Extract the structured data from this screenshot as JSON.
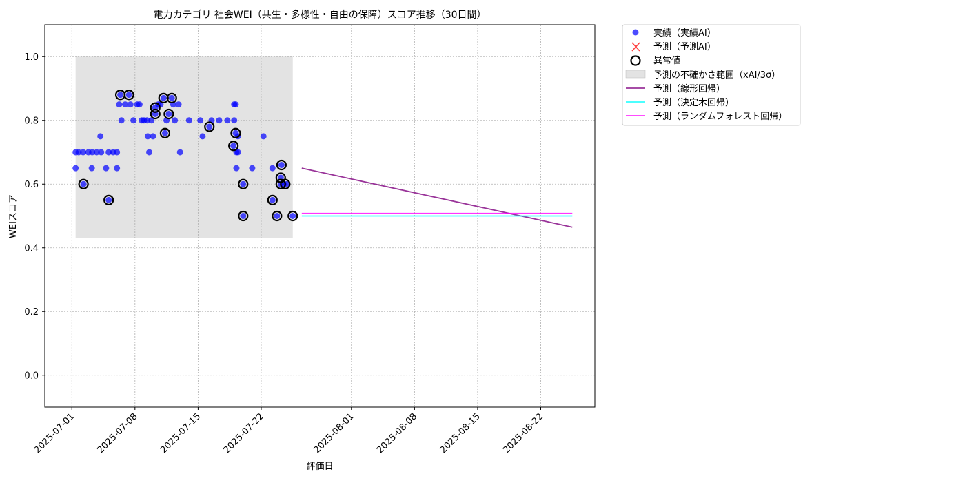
{
  "chart_data": {
    "type": "scatter",
    "title": "電力カテゴリ 社会WEI（共生・多様性・自由の保障）スコア推移（30日間）",
    "xlabel": "評価日",
    "ylabel": "WEIスコア",
    "xlim": [
      "2025-06-28",
      "2025-08-28"
    ],
    "ylim": [
      -0.1,
      1.1
    ],
    "x_ticks": [
      "2025-07-01",
      "2025-07-08",
      "2025-07-15",
      "2025-07-22",
      "2025-08-01",
      "2025-08-08",
      "2025-08-15",
      "2025-08-22"
    ],
    "y_ticks": [
      "0.0",
      "0.2",
      "0.4",
      "0.6",
      "0.8",
      "1.0"
    ],
    "grid": true,
    "legend_position": "outside-top-right",
    "colors": {
      "actual": "#0000ff",
      "predicted_ai": "#ff0000",
      "anomaly": "#000000",
      "uncertainty_band": "#cccccc",
      "linear": "#800080",
      "decision_tree": "#00ffff",
      "random_forest": "#ff00ff"
    },
    "legend": {
      "actual": "実績（実績AI）",
      "predicted_ai": "予測（予測AI）",
      "anomaly": "異常値",
      "uncertainty": "予測の不確かさ範囲（xAI/3σ）",
      "linear": "予測（線形回帰）",
      "decision_tree": "予測（決定木回帰）",
      "random_forest": "予測（ランダムフォレスト回帰）"
    },
    "uncertainty_band": {
      "x_start": "2025-07-01 10:00",
      "x_end": "2025-07-25 12:00",
      "y_low": 0.43,
      "y_high": 1.0
    },
    "actual_points": [
      {
        "x": "2025-07-01 10:00",
        "y": 0.65
      },
      {
        "x": "2025-07-01 10:00",
        "y": 0.7
      },
      {
        "x": "2025-07-01 18:00",
        "y": 0.7
      },
      {
        "x": "2025-07-02 06:00",
        "y": 0.7
      },
      {
        "x": "2025-07-02 07:00",
        "y": 0.6
      },
      {
        "x": "2025-07-02 20:00",
        "y": 0.7
      },
      {
        "x": "2025-07-03 05:00",
        "y": 0.65
      },
      {
        "x": "2025-07-03 06:00",
        "y": 0.7
      },
      {
        "x": "2025-07-03 18:00",
        "y": 0.7
      },
      {
        "x": "2025-07-04 04:00",
        "y": 0.75
      },
      {
        "x": "2025-07-04 06:00",
        "y": 0.7
      },
      {
        "x": "2025-07-04 19:00",
        "y": 0.65
      },
      {
        "x": "2025-07-05 02:00",
        "y": 0.55
      },
      {
        "x": "2025-07-05 02:00",
        "y": 0.7
      },
      {
        "x": "2025-07-05 14:00",
        "y": 0.7
      },
      {
        "x": "2025-07-06 00:00",
        "y": 0.7
      },
      {
        "x": "2025-07-06 00:00",
        "y": 0.65
      },
      {
        "x": "2025-07-06 06:00",
        "y": 0.85
      },
      {
        "x": "2025-07-06 09:00",
        "y": 0.88
      },
      {
        "x": "2025-07-06 12:00",
        "y": 0.8
      },
      {
        "x": "2025-07-06 22:00",
        "y": 0.85
      },
      {
        "x": "2025-07-07 08:00",
        "y": 0.88
      },
      {
        "x": "2025-07-07 12:00",
        "y": 0.85
      },
      {
        "x": "2025-07-07 20:00",
        "y": 0.8
      },
      {
        "x": "2025-07-08 06:00",
        "y": 0.85
      },
      {
        "x": "2025-07-08 12:00",
        "y": 0.85
      },
      {
        "x": "2025-07-08 18:00",
        "y": 0.8
      },
      {
        "x": "2025-07-09 00:00",
        "y": 0.8
      },
      {
        "x": "2025-07-09 08:00",
        "y": 0.8
      },
      {
        "x": "2025-07-09 10:00",
        "y": 0.75
      },
      {
        "x": "2025-07-09 14:00",
        "y": 0.7
      },
      {
        "x": "2025-07-09 20:00",
        "y": 0.8
      },
      {
        "x": "2025-07-10 00:00",
        "y": 0.75
      },
      {
        "x": "2025-07-10 06:00",
        "y": 0.84
      },
      {
        "x": "2025-07-10 06:00",
        "y": 0.82
      },
      {
        "x": "2025-07-10 14:00",
        "y": 0.85
      },
      {
        "x": "2025-07-10 20:00",
        "y": 0.85
      },
      {
        "x": "2025-07-11 04:00",
        "y": 0.87
      },
      {
        "x": "2025-07-11 08:00",
        "y": 0.76
      },
      {
        "x": "2025-07-11 12:00",
        "y": 0.8
      },
      {
        "x": "2025-07-11 18:00",
        "y": 0.82
      },
      {
        "x": "2025-07-12 02:00",
        "y": 0.87
      },
      {
        "x": "2025-07-12 06:00",
        "y": 0.85
      },
      {
        "x": "2025-07-12 10:00",
        "y": 0.8
      },
      {
        "x": "2025-07-12 20:00",
        "y": 0.85
      },
      {
        "x": "2025-07-13 00:00",
        "y": 0.7
      },
      {
        "x": "2025-07-14 00:00",
        "y": 0.8
      },
      {
        "x": "2025-07-15 06:00",
        "y": 0.8
      },
      {
        "x": "2025-07-15 12:00",
        "y": 0.75
      },
      {
        "x": "2025-07-16 06:00",
        "y": 0.78
      },
      {
        "x": "2025-07-16 12:00",
        "y": 0.8
      },
      {
        "x": "2025-07-17 08:00",
        "y": 0.8
      },
      {
        "x": "2025-07-18 06:00",
        "y": 0.8
      },
      {
        "x": "2025-07-18 22:00",
        "y": 0.72
      },
      {
        "x": "2025-07-19 00:00",
        "y": 0.85
      },
      {
        "x": "2025-07-19 00:00",
        "y": 0.8
      },
      {
        "x": "2025-07-19 04:00",
        "y": 0.76
      },
      {
        "x": "2025-07-19 04:00",
        "y": 0.85
      },
      {
        "x": "2025-07-19 06:00",
        "y": 0.7
      },
      {
        "x": "2025-07-19 06:00",
        "y": 0.65
      },
      {
        "x": "2025-07-19 10:00",
        "y": 0.75
      },
      {
        "x": "2025-07-19 10:00",
        "y": 0.7
      },
      {
        "x": "2025-07-20 00:00",
        "y": 0.6
      },
      {
        "x": "2025-07-20 00:00",
        "y": 0.5
      },
      {
        "x": "2025-07-21 00:00",
        "y": 0.65
      },
      {
        "x": "2025-07-22 06:00",
        "y": 0.75
      },
      {
        "x": "2025-07-23 06:00",
        "y": 0.55
      },
      {
        "x": "2025-07-23 06:00",
        "y": 0.65
      },
      {
        "x": "2025-07-23 18:00",
        "y": 0.5
      },
      {
        "x": "2025-07-24 04:00",
        "y": 0.6
      },
      {
        "x": "2025-07-24 04:00",
        "y": 0.62
      },
      {
        "x": "2025-07-24 06:00",
        "y": 0.66
      },
      {
        "x": "2025-07-24 12:00",
        "y": 0.6
      },
      {
        "x": "2025-07-24 20:00",
        "y": 0.6
      },
      {
        "x": "2025-07-25 12:00",
        "y": 0.5
      }
    ],
    "anomaly_points": [
      {
        "x": "2025-07-02 07:00",
        "y": 0.6
      },
      {
        "x": "2025-07-05 02:00",
        "y": 0.55
      },
      {
        "x": "2025-07-06 09:00",
        "y": 0.88
      },
      {
        "x": "2025-07-07 08:00",
        "y": 0.88
      },
      {
        "x": "2025-07-10 06:00",
        "y": 0.84
      },
      {
        "x": "2025-07-10 06:00",
        "y": 0.82
      },
      {
        "x": "2025-07-11 04:00",
        "y": 0.87
      },
      {
        "x": "2025-07-11 08:00",
        "y": 0.76
      },
      {
        "x": "2025-07-11 18:00",
        "y": 0.82
      },
      {
        "x": "2025-07-12 02:00",
        "y": 0.87
      },
      {
        "x": "2025-07-16 06:00",
        "y": 0.78
      },
      {
        "x": "2025-07-18 22:00",
        "y": 0.72
      },
      {
        "x": "2025-07-19 04:00",
        "y": 0.76
      },
      {
        "x": "2025-07-20 00:00",
        "y": 0.6
      },
      {
        "x": "2025-07-20 00:00",
        "y": 0.5
      },
      {
        "x": "2025-07-23 06:00",
        "y": 0.55
      },
      {
        "x": "2025-07-23 18:00",
        "y": 0.5
      },
      {
        "x": "2025-07-24 04:00",
        "y": 0.6
      },
      {
        "x": "2025-07-24 04:00",
        "y": 0.62
      },
      {
        "x": "2025-07-24 06:00",
        "y": 0.66
      },
      {
        "x": "2025-07-24 16:00",
        "y": 0.6
      },
      {
        "x": "2025-07-25 12:00",
        "y": 0.5
      }
    ],
    "prediction_lines": [
      {
        "key": "linear",
        "points": [
          {
            "x": "2025-07-26 12:00",
            "y": 0.65
          },
          {
            "x": "2025-08-25 12:00",
            "y": 0.465
          }
        ]
      },
      {
        "key": "decision_tree",
        "points": [
          {
            "x": "2025-07-26 12:00",
            "y": 0.5
          },
          {
            "x": "2025-08-25 12:00",
            "y": 0.5
          }
        ]
      },
      {
        "key": "random_forest",
        "points": [
          {
            "x": "2025-07-26 12:00",
            "y": 0.508
          },
          {
            "x": "2025-08-25 12:00",
            "y": 0.508
          }
        ]
      }
    ]
  }
}
